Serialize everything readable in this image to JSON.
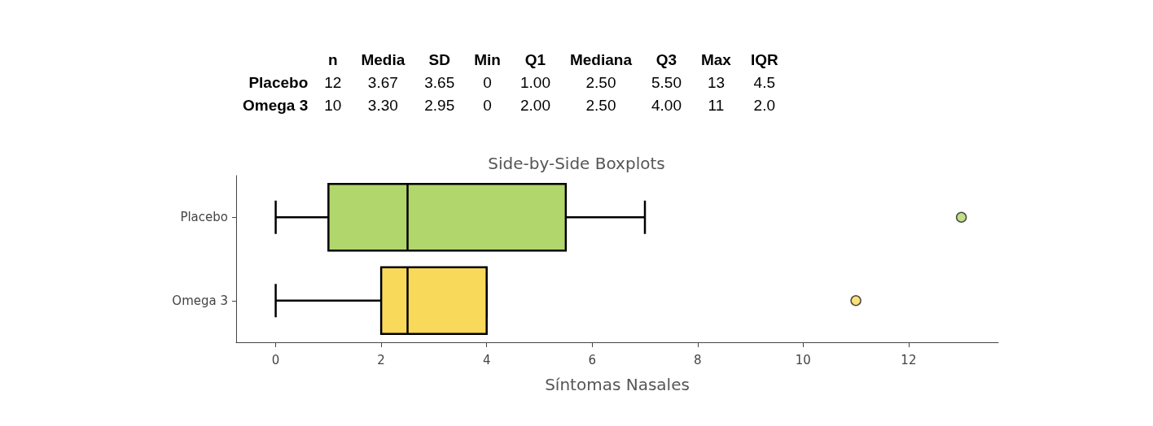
{
  "chart_data": [
    {
      "type": "other",
      "categories": [
        "n",
        "Media",
        "SD",
        "Min",
        "Q1",
        "Mediana",
        "Q3",
        "Max",
        "IQR"
      ],
      "y_categories": [
        "Placebo",
        "Omega 3"
      ],
      "cell_labels": [
        [
          "12",
          "3.67",
          "3.65",
          "0",
          "1.00",
          "2.50",
          "5.50",
          "13",
          "4.5"
        ],
        [
          "10",
          "3.30",
          "2.95",
          "0",
          "2.00",
          "2.50",
          "4.00",
          "11",
          "2.0"
        ]
      ]
    },
    {
      "type": "box",
      "title": "Side-by-Side Boxplots",
      "xlabel": "Síntomas Nasales",
      "orientation": "horizontal",
      "categories": [
        "Placebo",
        "Omega 3"
      ],
      "boxes": [
        {
          "low": 0,
          "q1": 1,
          "median": 2.5,
          "q3": 5.5,
          "high": 7,
          "outliers": [
            13
          ]
        },
        {
          "low": 0,
          "q1": 2,
          "median": 2.5,
          "q3": 4,
          "high": 4,
          "outliers": [
            11
          ]
        }
      ],
      "colors": [
        "#b1d66b",
        "#f9d95a"
      ],
      "xlim": [
        -0.75,
        13.7
      ],
      "xticks": [
        0,
        2,
        4,
        6,
        8,
        10,
        12
      ],
      "grid": false
    }
  ]
}
